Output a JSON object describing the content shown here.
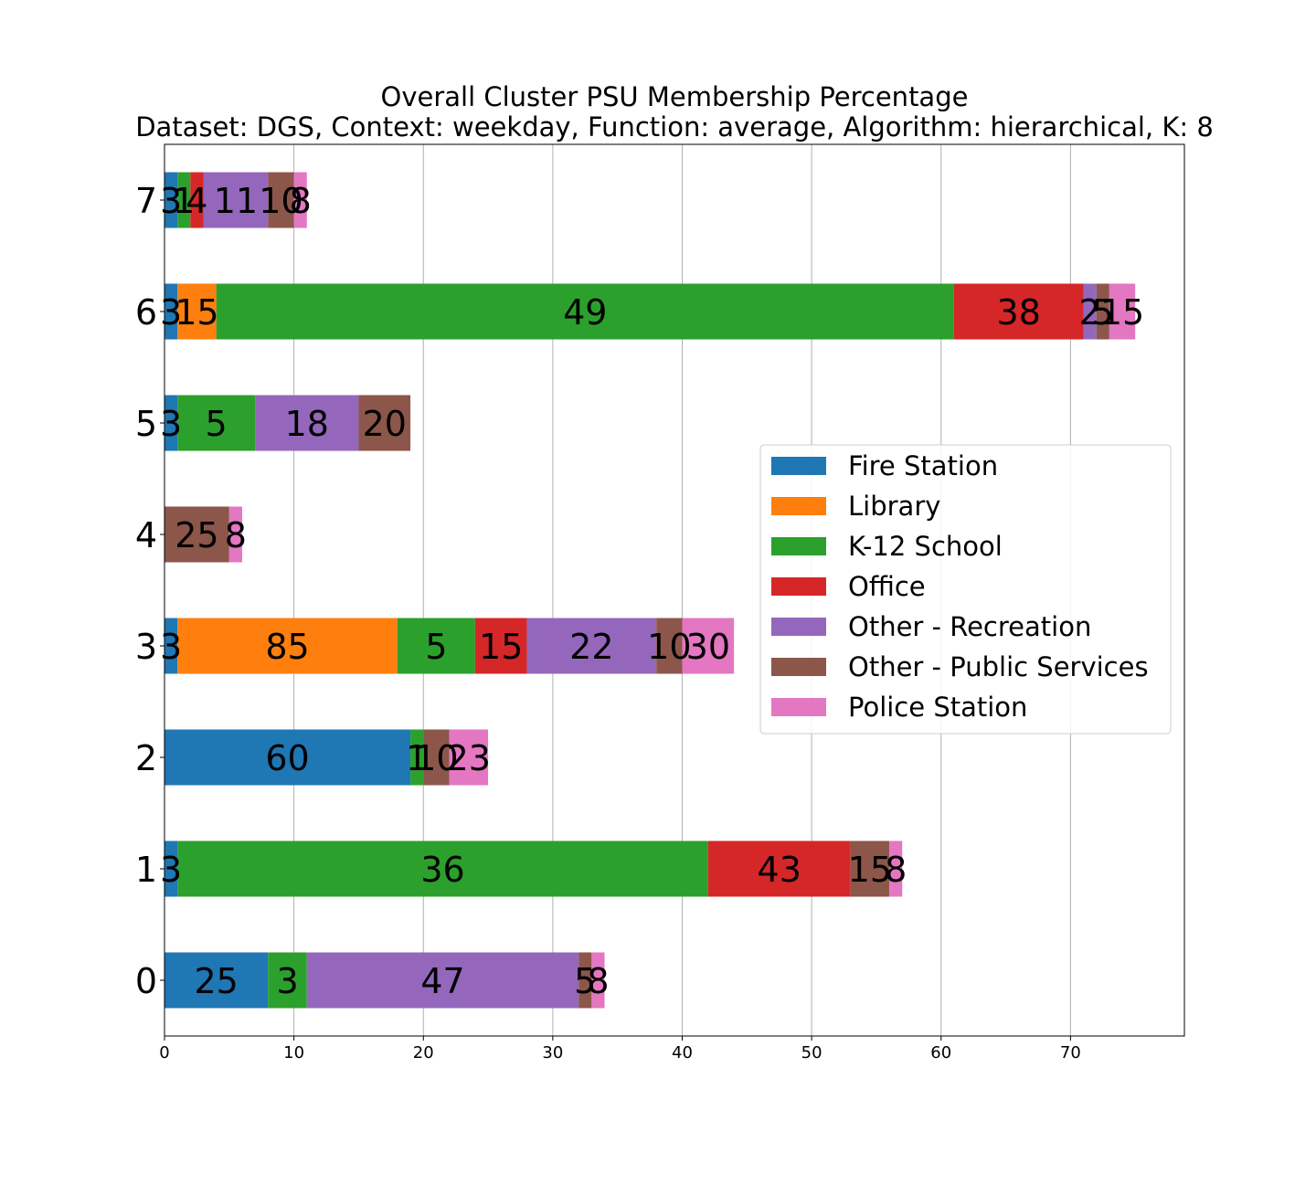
{
  "chart_data": {
    "type": "bar",
    "orientation": "horizontal",
    "stacked": true,
    "title": "Overall Cluster  PSU Membership Percentage",
    "subtitle": "Dataset: DGS, Context: weekday, Function: average, Algorithm: hierarchical, K: 8",
    "xlabel": "",
    "ylabel": "",
    "categories": [
      "0",
      "1",
      "2",
      "3",
      "4",
      "5",
      "6",
      "7"
    ],
    "xlim": [
      0,
      78.8
    ],
    "xticks": [
      0,
      10,
      20,
      30,
      40,
      50,
      60,
      70
    ],
    "grid": "vertical",
    "legend_position": "center-right",
    "series": [
      {
        "name": "Fire Station",
        "color": "#1f77b4",
        "values": [
          8,
          1,
          19,
          1,
          0,
          1,
          1,
          1
        ],
        "labels": [
          "25",
          "3",
          "60",
          "3",
          "",
          "3",
          "3",
          "3"
        ]
      },
      {
        "name": "Library",
        "color": "#ff7f0e",
        "values": [
          0,
          0,
          0,
          17,
          0,
          0,
          3,
          0
        ],
        "labels": [
          "",
          "",
          "",
          "85",
          "",
          "",
          "15",
          ""
        ]
      },
      {
        "name": "K-12 School",
        "color": "#2ca02c",
        "values": [
          3,
          41,
          1,
          6,
          0,
          6,
          57,
          1
        ],
        "labels": [
          "3",
          "36",
          "1",
          "5",
          "",
          "5",
          "49",
          "1"
        ]
      },
      {
        "name": "Office",
        "color": "#d62728",
        "values": [
          0,
          11,
          0,
          4,
          0,
          0,
          10,
          1
        ],
        "labels": [
          "",
          "43",
          "",
          "15",
          "",
          "",
          "38",
          "4"
        ]
      },
      {
        "name": "Other - Recreation",
        "color": "#9467bd",
        "values": [
          21,
          0,
          0,
          10,
          0,
          8,
          1,
          5
        ],
        "labels": [
          "47",
          "",
          "",
          "22",
          "",
          "18",
          "2",
          "11"
        ]
      },
      {
        "name": "Other - Public Services",
        "color": "#8c564b",
        "values": [
          1,
          3,
          2,
          2,
          5,
          4,
          1,
          2
        ],
        "labels": [
          "5",
          "15",
          "10",
          "10",
          "25",
          "20",
          "5",
          "10"
        ]
      },
      {
        "name": "Police Station",
        "color": "#e377c2",
        "values": [
          1,
          1,
          3,
          4,
          1,
          0,
          2,
          1
        ],
        "labels": [
          "8",
          "8",
          "23",
          "30",
          "8",
          "",
          "15",
          "8"
        ]
      }
    ]
  }
}
